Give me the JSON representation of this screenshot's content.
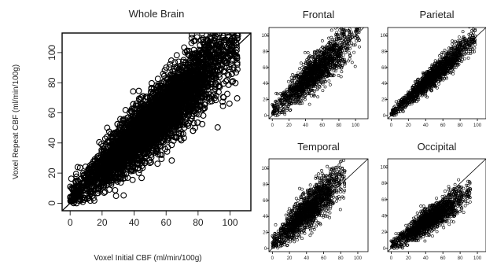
{
  "chart_data": [
    {
      "type": "scatter",
      "title": "Whole Brain",
      "xlabel": "Voxel Initial CBF (ml/min/100g)",
      "ylabel": "Voxel Repeat CBF (ml/min/100g)",
      "xlim": [
        -5,
        113
      ],
      "ylim": [
        -5,
        113
      ],
      "xticks": [
        0,
        20,
        40,
        60,
        80,
        100
      ],
      "yticks": [
        0,
        20,
        40,
        60,
        80,
        100
      ],
      "identity_line": true,
      "marker": "open-circle",
      "approx_cloud": {
        "x_range": [
          0,
          105
        ],
        "slope": 0.98,
        "intercept": 3,
        "spread": 9
      }
    },
    {
      "type": "scatter",
      "title": "Frontal",
      "xlim": [
        -4,
        115
      ],
      "ylim": [
        -4,
        110
      ],
      "xticks": [
        0,
        20,
        40,
        60,
        80,
        100
      ],
      "yticks": [
        0,
        20,
        40,
        60,
        80,
        100
      ],
      "identity_line": true,
      "marker": "open-circle",
      "approx_cloud": {
        "x_range": [
          0,
          105
        ],
        "slope": 0.95,
        "intercept": 5,
        "spread": 10
      }
    },
    {
      "type": "scatter",
      "title": "Parietal",
      "xlim": [
        -4,
        110
      ],
      "ylim": [
        -4,
        110
      ],
      "xticks": [
        0,
        20,
        40,
        60,
        80,
        100
      ],
      "yticks": [
        0,
        20,
        40,
        60,
        80,
        100
      ],
      "identity_line": true,
      "marker": "open-circle",
      "approx_cloud": {
        "x_range": [
          0,
          98
        ],
        "slope": 0.97,
        "intercept": 2,
        "spread": 6
      }
    },
    {
      "type": "scatter",
      "title": "Temporal",
      "xlim": [
        -4,
        112
      ],
      "ylim": [
        -4,
        112
      ],
      "xticks": [
        0,
        20,
        40,
        60,
        80,
        100
      ],
      "yticks": [
        0,
        20,
        40,
        60,
        80,
        100
      ],
      "identity_line": true,
      "marker": "open-circle",
      "approx_cloud": {
        "x_range": [
          0,
          85
        ],
        "slope": 1.0,
        "intercept": 6,
        "spread": 11
      }
    },
    {
      "type": "scatter",
      "title": "Occipital",
      "xlim": [
        -4,
        110
      ],
      "ylim": [
        -4,
        110
      ],
      "xticks": [
        0,
        20,
        40,
        60,
        80,
        100
      ],
      "yticks": [
        0,
        20,
        40,
        60,
        80,
        100
      ],
      "identity_line": true,
      "marker": "open-circle",
      "approx_cloud": {
        "x_range": [
          0,
          92
        ],
        "slope": 0.72,
        "intercept": 3,
        "spread": 7
      }
    }
  ]
}
